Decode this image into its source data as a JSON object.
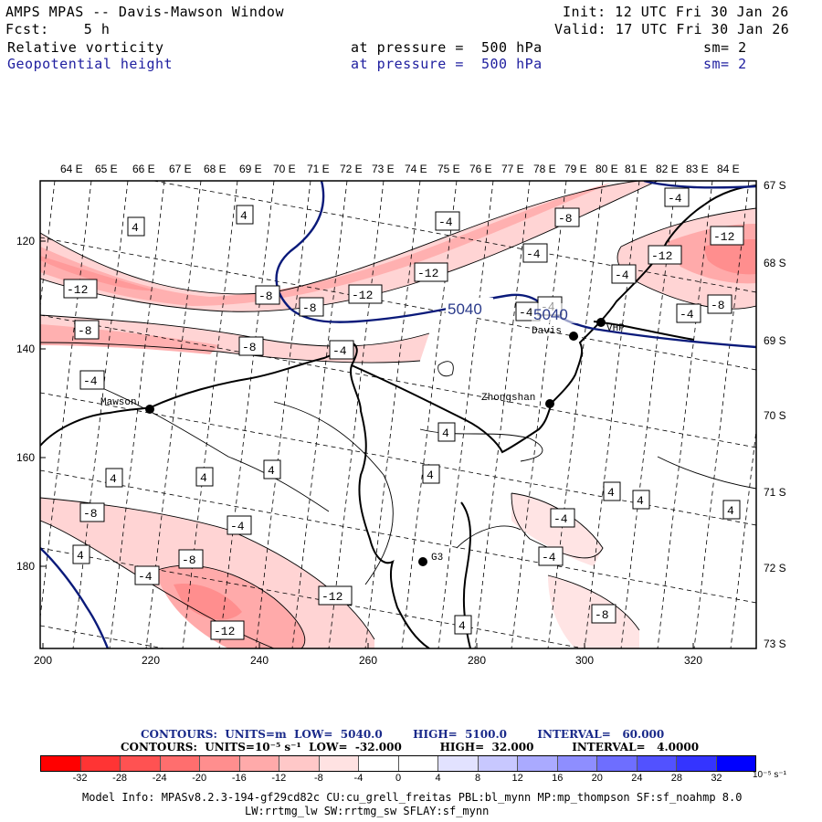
{
  "header": {
    "title": "AMPS MPAS -- Davis-Mawson Window",
    "fcst": "Fcst:    5 h",
    "init": "Init: 12 UTC Fri 30 Jan 26",
    "valid": "Valid: 17 UTC Fri 30 Jan 26",
    "field1": {
      "name": "Relative vorticity",
      "pressure": "at pressure =  500 hPa",
      "sm": "sm= 2"
    },
    "field2": {
      "name": "Geopotential height",
      "pressure": "at pressure =  500 hPa",
      "sm": "sm= 2"
    }
  },
  "axes": {
    "top_labels": [
      "64 E",
      "65 E",
      "66 E",
      "67 E",
      "68 E",
      "69 E",
      "70 E",
      "71 E",
      "72 E",
      "73 E",
      "74 E",
      "75 E",
      "76 E",
      "77 E",
      "78 E",
      "79 E",
      "80 E",
      "81 E",
      "82 E",
      "83 E",
      "84 E"
    ],
    "right_labels": [
      "67 S",
      "68 S",
      "69 S",
      "70 S",
      "71 S",
      "72 S",
      "73 S"
    ],
    "bottom_labels": [
      "200",
      "220",
      "240",
      "260",
      "280",
      "300",
      "320"
    ],
    "left_labels": [
      "120",
      "140",
      "160",
      "180"
    ]
  },
  "stations": [
    {
      "name": "Mawson"
    },
    {
      "name": "Zhongshan"
    },
    {
      "name": "Davis"
    },
    {
      "name": "VHP"
    },
    {
      "name": "G3"
    }
  ],
  "height_labels": [
    "5040",
    "5040"
  ],
  "vort_labels": [
    "4",
    "4",
    "-4",
    "-4",
    "-8",
    "-12",
    "-8",
    "-12",
    "-12",
    "-8",
    "-8",
    "-4",
    "-4",
    "-12",
    "-8",
    "-4",
    "-12",
    "-4",
    "-8",
    "-4",
    "-4",
    "4",
    "4",
    "4",
    "4",
    "4",
    "-8",
    "-4",
    "4",
    "-8",
    "-4",
    "-4",
    "-12",
    "-12",
    "4",
    "4",
    "-4",
    "4",
    "-4",
    "-8",
    "4",
    "4"
  ],
  "legend": {
    "line1": "CONTOURS:  UNITS=m  LOW=  5040.0        HIGH=  5100.0        INTERVAL=   60.000",
    "line2": "CONTOURS:  UNITS=10⁻⁵ s⁻¹  LOW=  -32.000          HIGH=  32.000          INTERVAL=   4.0000",
    "colors": [
      "#ff0000",
      "#ff3434",
      "#ff5252",
      "#ff6e6e",
      "#ff8e8e",
      "#ffaaaa",
      "#ffc8c8",
      "#ffe2e2",
      "#ffffff",
      "#ffffff",
      "#e2e2ff",
      "#c8c8ff",
      "#aaaaff",
      "#8e8eff",
      "#6e6eff",
      "#5252ff",
      "#3434ff",
      "#0000ff"
    ],
    "ticks": [
      "-32",
      "-28",
      "-24",
      "-20",
      "-16",
      "-12",
      "-8",
      "-4",
      "0",
      "4",
      "8",
      "12",
      "16",
      "20",
      "24",
      "28",
      "32"
    ],
    "units": "10⁻⁵ s⁻¹"
  },
  "model_info": {
    "line1": "Model Info: MPASv8.2.3-194-gf29cd82c CU:cu_grell_freitas PBL:bl_mynn MP:mp_thompson SF:sf_noahmp 8.0",
    "line2": "LW:rrtmg_lw SW:rrtmg_sw SFLAY:sf_mynn"
  }
}
